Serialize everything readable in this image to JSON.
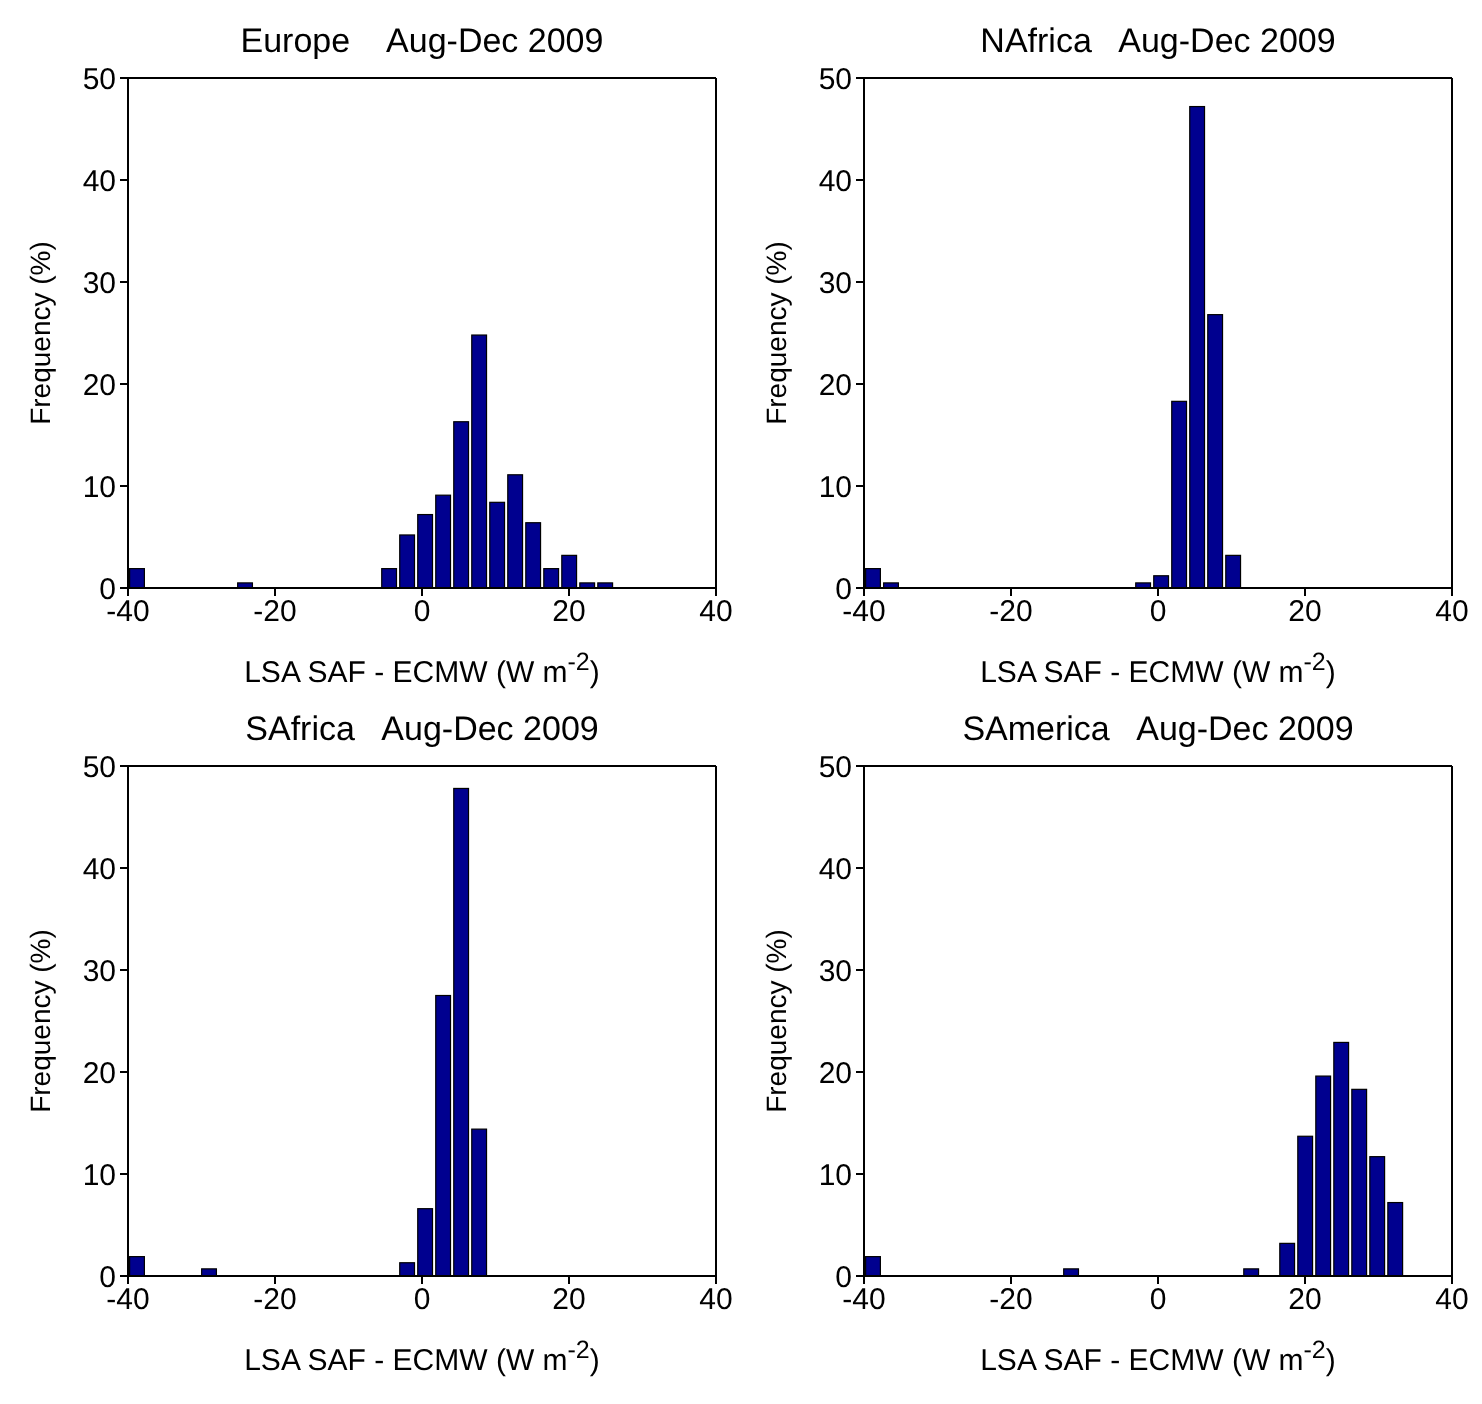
{
  "chart_data": [
    {
      "type": "histogram",
      "title": "Europe    Aug-Dec 2009",
      "xlabel": "LSA SAF - ECMW (W m$^{-2}$)",
      "ylabel": "Frequency (%)",
      "color": "#00008f",
      "xlim": [
        -40,
        40
      ],
      "xticks": [
        -40,
        -20,
        0,
        20,
        40
      ],
      "ylim": [
        0,
        50
      ],
      "yticks": [
        0,
        10,
        20,
        30,
        40,
        50
      ],
      "grid": false,
      "bins": [
        -40,
        -37.55,
        -35.1,
        -32.65,
        -30.2,
        -27.75,
        -25.3,
        -22.85,
        -20.4,
        -17.95,
        -15.5,
        -13.05,
        -10.6,
        -8.15,
        -5.7,
        -3.25,
        -0.8,
        1.65,
        4.1,
        6.55,
        9,
        11.45,
        13.9,
        16.35,
        18.8,
        21.25,
        23.7,
        26.15,
        28.6,
        31.05,
        33.5,
        35.95,
        38.4
      ],
      "values": [
        1.9,
        0,
        0,
        0,
        0,
        0,
        0.5,
        0,
        0,
        0,
        0,
        0,
        0,
        0,
        1.9,
        5.2,
        7.2,
        9.1,
        16.3,
        24.8,
        8.4,
        11.1,
        6.4,
        1.9,
        3.2,
        0.5,
        0.5,
        0,
        0,
        0,
        0,
        0
      ]
    },
    {
      "type": "histogram",
      "title": "NAfrica   Aug-Dec 2009",
      "xlabel": "LSA SAF - ECMW (W m$^{-2}$)",
      "ylabel": "Frequency (%)",
      "color": "#00008f",
      "xlim": [
        -40,
        40
      ],
      "xticks": [
        -40,
        -20,
        0,
        20,
        40
      ],
      "ylim": [
        0,
        50
      ],
      "yticks": [
        0,
        10,
        20,
        30,
        40,
        50
      ],
      "grid": false,
      "bins": [
        -40,
        -37.55,
        -35.1,
        -32.65,
        -30.2,
        -27.75,
        -25.3,
        -22.85,
        -20.4,
        -17.95,
        -15.5,
        -13.05,
        -10.6,
        -8.15,
        -5.7,
        -3.25,
        -0.8,
        1.65,
        4.1,
        6.55,
        9,
        11.45,
        13.9,
        16.35,
        18.8,
        21.25,
        23.7,
        26.15,
        28.6,
        31.05,
        33.5,
        35.95,
        38.4
      ],
      "values": [
        1.9,
        0.5,
        0,
        0,
        0,
        0,
        0,
        0,
        0,
        0,
        0,
        0,
        0,
        0,
        0,
        0.5,
        1.2,
        18.3,
        47.2,
        26.8,
        3.2,
        0,
        0,
        0,
        0,
        0,
        0,
        0,
        0,
        0,
        0,
        0
      ]
    },
    {
      "type": "histogram",
      "title": "SAfrica   Aug-Dec 2009",
      "xlabel": "LSA SAF - ECMW (W m$^{-2}$)",
      "ylabel": "Frequency (%)",
      "color": "#00008f",
      "xlim": [
        -40,
        40
      ],
      "xticks": [
        -40,
        -20,
        0,
        20,
        40
      ],
      "ylim": [
        0,
        50
      ],
      "yticks": [
        0,
        10,
        20,
        30,
        40,
        50
      ],
      "grid": false,
      "bins": [
        -40,
        -37.55,
        -35.1,
        -32.65,
        -30.2,
        -27.75,
        -25.3,
        -22.85,
        -20.4,
        -17.95,
        -15.5,
        -13.05,
        -10.6,
        -8.15,
        -5.7,
        -3.25,
        -0.8,
        1.65,
        4.1,
        6.55,
        9,
        11.45,
        13.9,
        16.35,
        18.8,
        21.25,
        23.7,
        26.15,
        28.6,
        31.05,
        33.5,
        35.95,
        38.4
      ],
      "values": [
        1.9,
        0,
        0,
        0,
        0.7,
        0,
        0,
        0,
        0,
        0,
        0,
        0,
        0,
        0,
        0,
        1.3,
        6.6,
        27.5,
        47.8,
        14.4,
        0,
        0,
        0,
        0,
        0,
        0,
        0,
        0,
        0,
        0,
        0,
        0
      ]
    },
    {
      "type": "histogram",
      "title": "SAmerica   Aug-Dec 2009",
      "xlabel": "LSA SAF - ECMW (W m$^{-2}$)",
      "ylabel": "Frequency (%)",
      "color": "#00008f",
      "xlim": [
        -40,
        40
      ],
      "xticks": [
        -40,
        -20,
        0,
        20,
        40
      ],
      "ylim": [
        0,
        50
      ],
      "yticks": [
        0,
        10,
        20,
        30,
        40,
        50
      ],
      "grid": false,
      "bins": [
        -40,
        -37.55,
        -35.1,
        -32.65,
        -30.2,
        -27.75,
        -25.3,
        -22.85,
        -20.4,
        -17.95,
        -15.5,
        -13.05,
        -10.6,
        -8.15,
        -5.7,
        -3.25,
        -0.8,
        1.65,
        4.1,
        6.55,
        9,
        11.45,
        13.9,
        16.35,
        18.8,
        21.25,
        23.7,
        26.15,
        28.6,
        31.05,
        33.5,
        35.95,
        38.4
      ],
      "values": [
        1.9,
        0,
        0,
        0,
        0,
        0,
        0,
        0,
        0,
        0,
        0,
        0.7,
        0,
        0,
        0,
        0,
        0,
        0,
        0,
        0,
        0,
        0.7,
        0,
        3.2,
        13.7,
        19.6,
        22.9,
        18.3,
        11.7,
        7.2,
        0,
        0
      ]
    }
  ]
}
